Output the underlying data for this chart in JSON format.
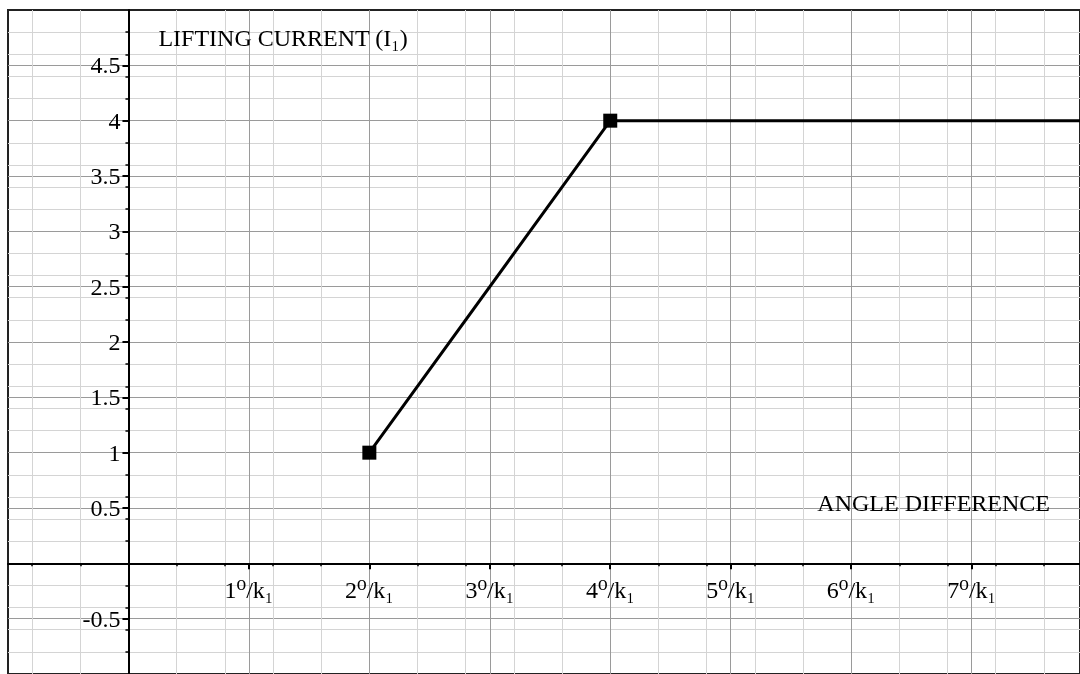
{
  "chart_data": {
    "type": "line",
    "xlabel": "ANGLE DIFFERENCE",
    "ylabel": "LIFTING CURRENT (I₁)",
    "x": [
      2,
      4,
      7.9
    ],
    "series": [
      {
        "color": "#000000",
        "values": [
          1,
          4,
          4
        ]
      }
    ],
    "xlim": [
      -1,
      7.9
    ],
    "ylim": [
      -1,
      5
    ],
    "xticks": [
      {
        "value": 1,
        "label": "1⁰/k₁"
      },
      {
        "value": 2,
        "label": "2⁰/k₁"
      },
      {
        "value": 3,
        "label": "3⁰/k₁"
      },
      {
        "value": 4,
        "label": "4⁰/k₁"
      },
      {
        "value": 5,
        "label": "5⁰/k₁"
      },
      {
        "value": 6,
        "label": "6⁰/k₁"
      },
      {
        "value": 7,
        "label": "7⁰/k₁"
      }
    ],
    "yticks": [
      -0.5,
      0.5,
      1,
      1.5,
      2,
      2.5,
      3,
      3.5,
      4,
      4.5
    ],
    "grid": true,
    "marker": "square",
    "line_style": "solid"
  }
}
